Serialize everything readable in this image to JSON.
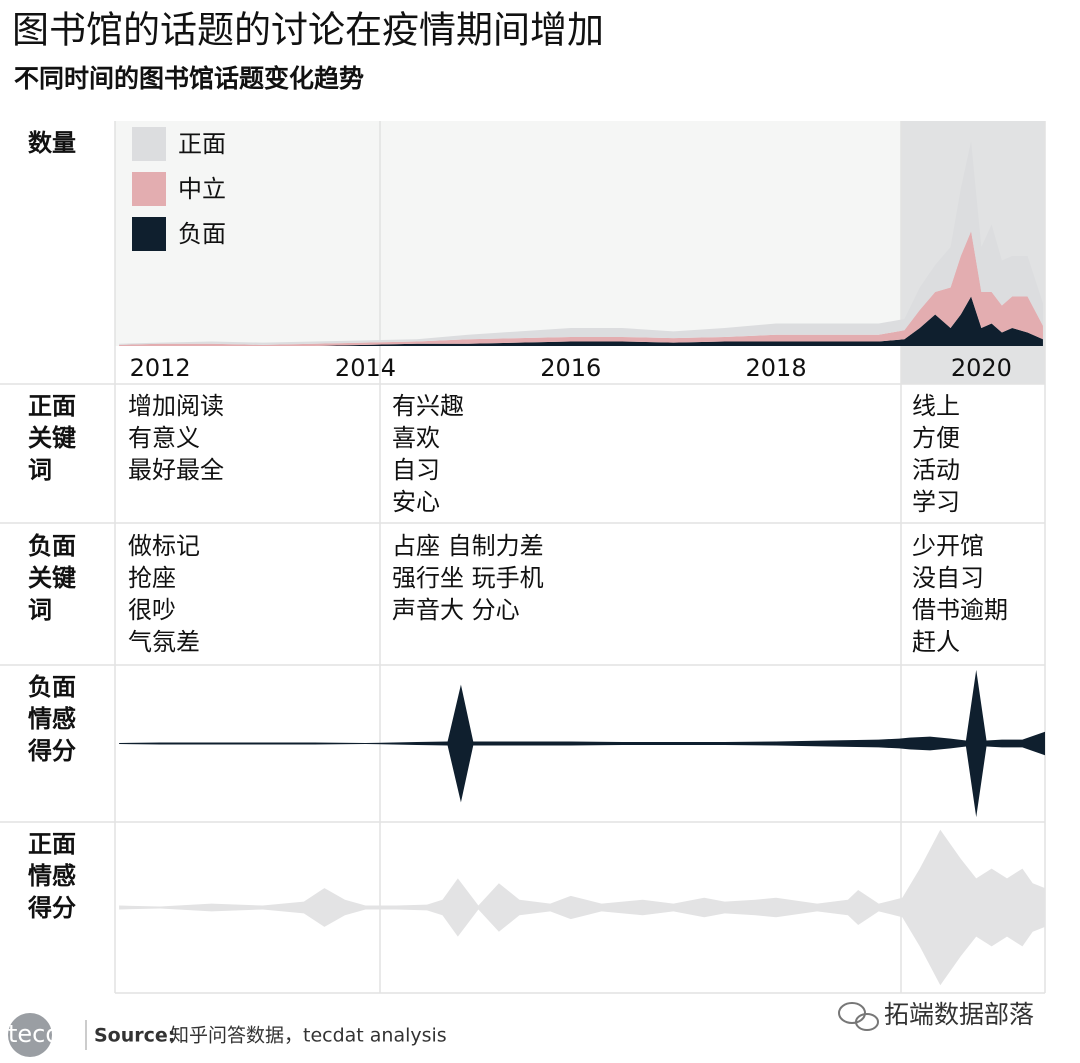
{
  "title": "图书馆的话题的讨论在疫情期间增加",
  "subtitle": "不同时间的图书馆话题变化趋势",
  "chart_data": [
    {
      "type": "stacked-area",
      "label": [
        "数量"
      ],
      "legend": "upper left",
      "x": [
        2011.6,
        2012,
        2012.5,
        2013,
        2013.5,
        2014,
        2014.5,
        2015,
        2015.5,
        2016,
        2016.5,
        2017,
        2017.5,
        2018,
        2018.5,
        2019,
        2019.25,
        2019.4,
        2019.55,
        2019.7,
        2019.8,
        2019.9,
        2020,
        2020.1,
        2020.2,
        2020.3,
        2020.45,
        2020.6
      ],
      "xlim": [
        2011.56,
        2020.62
      ],
      "xticks": [
        2012,
        2014,
        2016,
        2018,
        2020
      ],
      "ylim": [
        0,
        100
      ],
      "series": [
        {
          "name": "正面",
          "color": "#dcdddf",
          "values": [
            0.5,
            0.5,
            1,
            1,
            1,
            1,
            1,
            2,
            3,
            4,
            4,
            3,
            4,
            5,
            5,
            5,
            5,
            10,
            12,
            18,
            30,
            40,
            20,
            30,
            20,
            18,
            18,
            10
          ]
        },
        {
          "name": "中立",
          "color": "#e3adb0",
          "values": [
            0.5,
            1,
            1,
            0.5,
            1,
            1,
            1,
            2,
            2,
            2,
            2,
            2,
            2,
            3,
            3,
            3,
            4,
            8,
            10,
            18,
            26,
            29,
            16,
            14,
            12,
            14,
            16,
            6
          ]
        },
        {
          "name": "负面",
          "color": "#0f1f2e",
          "values": [
            0,
            0,
            0,
            0,
            0,
            0.5,
            1,
            1,
            1.5,
            2,
            2,
            1.5,
            2,
            2,
            2,
            2,
            3,
            8,
            14,
            8,
            14,
            22,
            8,
            10,
            6,
            8,
            6,
            3
          ]
        }
      ]
    },
    {
      "type": "stream",
      "label": [
        "负面",
        "情感",
        "得分"
      ],
      "color": "#0f1f2e",
      "x": [
        2011.6,
        2012,
        2012.5,
        2013,
        2013.5,
        2014,
        2014.5,
        2014.8,
        2014.93,
        2015.05,
        2015.2,
        2015.5,
        2016,
        2016.5,
        2017,
        2017.5,
        2018,
        2018.5,
        2019,
        2019.2,
        2019.3,
        2019.5,
        2019.7,
        2019.85,
        2019.95,
        2020.05,
        2020.2,
        2020.4,
        2020.62
      ],
      "xlim": [
        2011.56,
        2020.62
      ],
      "ylim": [
        0,
        80
      ],
      "values": [
        0.5,
        1,
        1,
        1,
        1,
        0.5,
        1.5,
        2,
        60,
        2,
        2,
        2,
        2,
        1.5,
        1.5,
        1.5,
        2,
        3,
        4,
        5,
        6,
        7,
        5,
        3,
        75,
        3,
        4,
        4,
        12
      ]
    },
    {
      "type": "stream",
      "label": [
        "正面",
        "情感",
        "得分"
      ],
      "color": "#e3e3e4",
      "x": [
        2011.6,
        2012,
        2012.5,
        2013,
        2013.4,
        2013.6,
        2013.8,
        2014,
        2014.3,
        2014.6,
        2014.75,
        2014.9,
        2015.1,
        2015.3,
        2015.5,
        2015.8,
        2016,
        2016.3,
        2016.7,
        2017,
        2017.3,
        2017.5,
        2017.8,
        2018,
        2018.4,
        2018.7,
        2018.8,
        2019,
        2019.23,
        2019.4,
        2019.6,
        2019.8,
        2019.95,
        2020.1,
        2020.25,
        2020.4,
        2020.5,
        2020.62
      ],
      "xlim": [
        2011.56,
        2020.62
      ],
      "ylim": [
        0,
        88
      ],
      "values": [
        2,
        1,
        4,
        2,
        6,
        20,
        8,
        2,
        2,
        3,
        8,
        30,
        2,
        25,
        8,
        4,
        12,
        4,
        8,
        4,
        10,
        6,
        8,
        10,
        4,
        8,
        18,
        4,
        10,
        40,
        80,
        50,
        30,
        40,
        30,
        40,
        25,
        20
      ]
    }
  ],
  "keywords": [
    {
      "label": [
        "正面",
        "关键",
        "词"
      ],
      "columns": [
        [
          "增加阅读",
          "有意义",
          "最好最全"
        ],
        [
          "有兴趣",
          "喜欢",
          "自习",
          "安心"
        ],
        [
          "线上",
          "方便",
          "活动",
          "学习"
        ]
      ]
    },
    {
      "label": [
        "负面",
        "关键",
        "词"
      ],
      "columns": [
        [
          "做标记",
          "抢座",
          "很吵",
          "气氛差"
        ],
        [
          "占座 自制力差",
          "强行坐 玩手机",
          "声音大 分心"
        ],
        [
          "少开馆",
          "没自习",
          "借书逾期",
          "赶人"
        ]
      ]
    }
  ],
  "source": {
    "label": "Source:",
    "text": "知乎问答数据，tecdat analysis"
  },
  "logo": "tecdat",
  "watermark": "拓端数据部落"
}
